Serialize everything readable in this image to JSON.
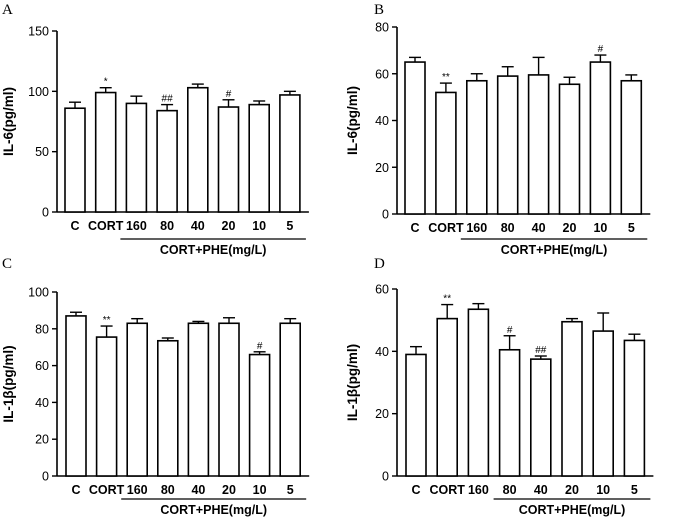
{
  "chart_data": [
    {
      "type": "bar",
      "panel": "A",
      "ylabel": "IL-6(pg/ml)",
      "ylim": [
        0,
        150
      ],
      "yticks": [
        0,
        50,
        100,
        150
      ],
      "categories": [
        "C",
        "CORT",
        "160",
        "80",
        "40",
        "20",
        "10",
        "5"
      ],
      "values": [
        86,
        99,
        90,
        84,
        103,
        87,
        89,
        97
      ],
      "errors": [
        5,
        4,
        6,
        5,
        3,
        6,
        3,
        3
      ],
      "annotations": [
        "",
        "*",
        "",
        "##",
        "",
        "#",
        "",
        ""
      ],
      "group_label": "CORT+PHE(mg/L)",
      "group_start": 2,
      "group_end": 7
    },
    {
      "type": "bar",
      "panel": "B",
      "ylabel": "IL-6(pg/ml)",
      "ylim": [
        0,
        80
      ],
      "yticks": [
        0,
        20,
        40,
        60,
        80
      ],
      "categories": [
        "C",
        "CORT",
        "160",
        "80",
        "40",
        "20",
        "10",
        "5"
      ],
      "values": [
        65,
        52,
        57,
        59,
        59.5,
        55.5,
        65,
        57
      ],
      "errors": [
        2,
        4,
        3,
        4,
        7.5,
        3,
        3,
        2.5
      ],
      "annotations": [
        "",
        "**",
        "",
        "",
        "",
        "",
        "#",
        ""
      ],
      "group_label": "CORT+PHE(mg/L)",
      "group_start": 2,
      "group_end": 7
    },
    {
      "type": "bar",
      "panel": "C",
      "ylabel": "IL-1β(pg/ml)",
      "ylim": [
        0,
        100
      ],
      "yticks": [
        0,
        20,
        40,
        60,
        80,
        100
      ],
      "categories": [
        "C",
        "CORT",
        "160",
        "80",
        "40",
        "20",
        "10",
        "5"
      ],
      "values": [
        87,
        75.5,
        83,
        73.5,
        83,
        83,
        66,
        83
      ],
      "errors": [
        2,
        6,
        2.5,
        1.5,
        1,
        3,
        1.5,
        2.5
      ],
      "annotations": [
        "",
        "**",
        "",
        "",
        "",
        "",
        "#",
        ""
      ],
      "group_label": "CORT+PHE(mg/L)",
      "group_start": 2,
      "group_end": 7
    },
    {
      "type": "bar",
      "panel": "D",
      "ylabel": "IL-1β(pg/ml)",
      "ylim": [
        0,
        60
      ],
      "yticks": [
        0,
        20,
        40,
        60
      ],
      "categories": [
        "C",
        "CORT",
        "160",
        "80",
        "40",
        "20",
        "10",
        "5"
      ],
      "values": [
        39,
        50.5,
        53.5,
        40.5,
        37.5,
        49.5,
        46.5,
        43.5
      ],
      "errors": [
        2.5,
        4.5,
        1.8,
        4.5,
        1,
        1,
        5.8,
        2
      ],
      "annotations": [
        "",
        "**",
        "",
        "#",
        "##",
        "",
        "",
        ""
      ],
      "group_label": "CORT+PHE(mg/L)",
      "group_start": 3,
      "group_end": 7
    }
  ]
}
